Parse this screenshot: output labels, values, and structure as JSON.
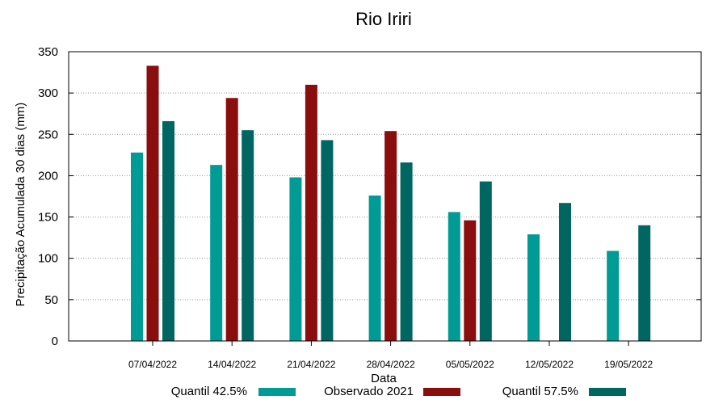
{
  "chart_data": {
    "type": "bar",
    "title": "Rio Iriri",
    "xlabel": "Data",
    "ylabel": "Precipitação Acumulada 30 dias (mm)",
    "ylim": [
      0,
      350
    ],
    "yticks": [
      0,
      50,
      100,
      150,
      200,
      250,
      300,
      350
    ],
    "grid": true,
    "legend_position": "bottom",
    "categories": [
      "07/04/2022",
      "14/04/2022",
      "21/04/2022",
      "28/04/2022",
      "05/05/2022",
      "12/05/2022",
      "19/05/2022"
    ],
    "series": [
      {
        "name": "Quantil 42.5%",
        "color": "#009b95",
        "values": [
          228,
          213,
          198,
          176,
          156,
          129,
          109
        ]
      },
      {
        "name": "Observado 2021",
        "color": "#8b0e0e",
        "values": [
          333,
          294,
          310,
          254,
          146,
          null,
          null
        ]
      },
      {
        "name": "Quantil 57.5%",
        "color": "#006661",
        "values": [
          266,
          255,
          243,
          216,
          193,
          167,
          140
        ]
      }
    ]
  }
}
